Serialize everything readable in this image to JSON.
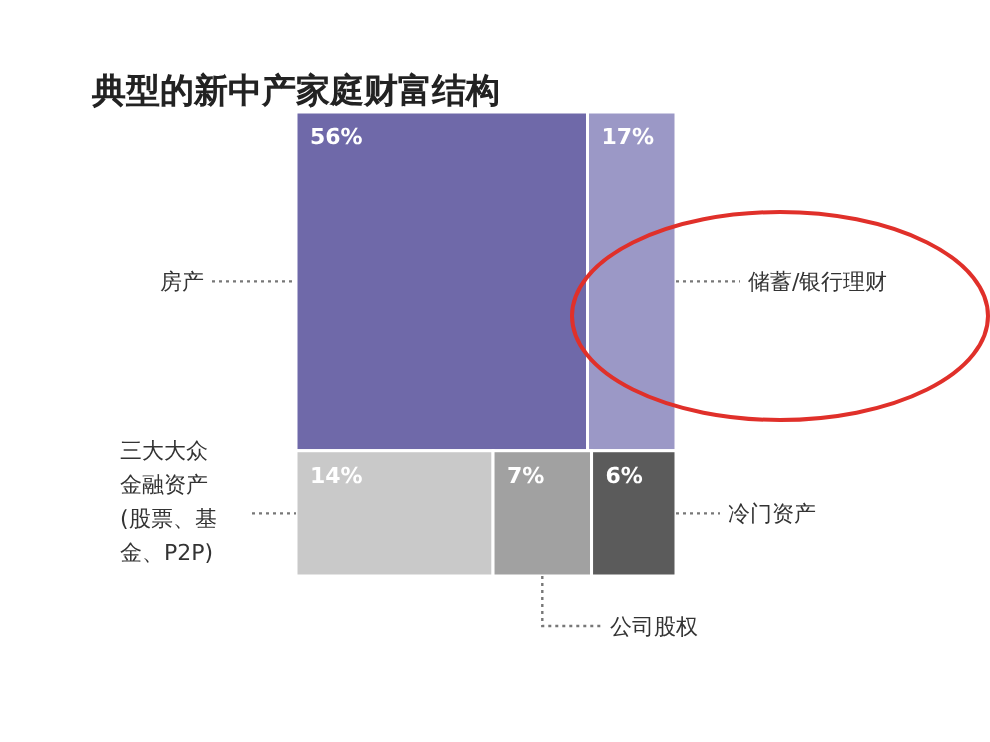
{
  "chart_data": {
    "type": "other",
    "title": "典型的新中产家庭财富结构",
    "categories": [
      "房产",
      "储蓄/银行理财",
      "三大大众金融资产(股票、基金、P2P)",
      "公司股权",
      "冷门资产"
    ],
    "values": [
      56,
      17,
      14,
      7,
      6
    ],
    "value_labels": [
      "56%",
      "17%",
      "14%",
      "7%",
      "6%"
    ],
    "colors": [
      "#6f69a9",
      "#9b98c6",
      "#c9c9c9",
      "#a1a1a1",
      "#5b5b5b"
    ]
  }
}
